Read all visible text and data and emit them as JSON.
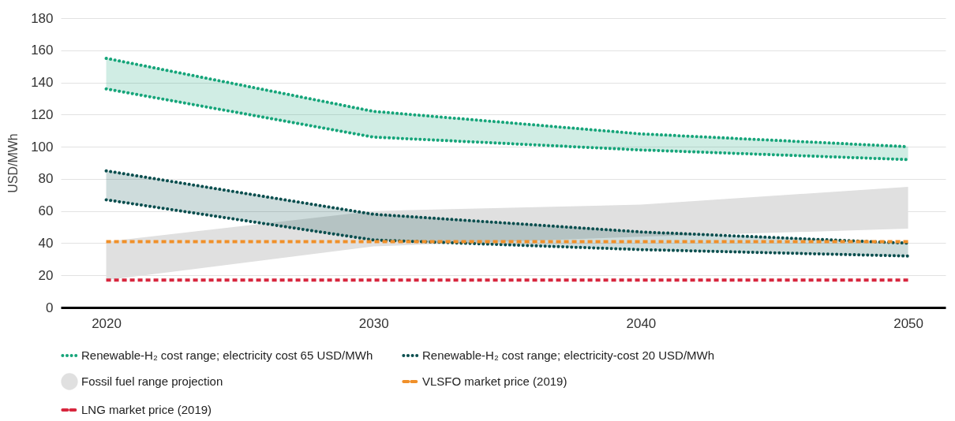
{
  "chart_data": {
    "type": "line",
    "ylabel": "USD/MWh",
    "x": [
      2020,
      2030,
      2040,
      2050
    ],
    "xlim": [
      2018.3,
      2051.4
    ],
    "xticks": [
      2020,
      2030,
      2040,
      2050
    ],
    "ylim": [
      0,
      180
    ],
    "yticks": [
      0,
      20,
      40,
      60,
      80,
      100,
      120,
      140,
      160,
      180
    ],
    "grid": "y",
    "legend": "bottom",
    "series": [
      {
        "name": "Renewable-H₂ cost range; electricity cost 65 USD/MWh",
        "line_style": "dotted",
        "color": "#16a57a",
        "values": [
          155,
          122,
          108,
          100
        ],
        "lower": [
          136,
          106,
          98,
          92
        ],
        "upper": [
          155,
          122,
          108,
          100
        ]
      },
      {
        "line_style": "dotted",
        "color": "#16a57a",
        "values": [
          136,
          106,
          98,
          92
        ]
      },
      {
        "name": "Renewable-H₂ cost range; electricity-cost 20 USD/MWh",
        "line_style": "dotted",
        "color": "#0b4f4f",
        "values": [
          85,
          58,
          47,
          40
        ],
        "lower": [
          67,
          42,
          36,
          32
        ],
        "upper": [
          85,
          58,
          47,
          40
        ]
      },
      {
        "line_style": "dotted",
        "color": "#0b4f4f",
        "values": [
          67,
          42,
          36,
          32
        ]
      },
      {
        "name": "Fossil fuel range projection",
        "color": "#e0e0e0",
        "values": [
          null,
          null,
          null,
          null
        ],
        "lower": [
          17,
          38,
          44,
          49
        ],
        "upper": [
          41,
          60,
          64,
          75
        ]
      },
      {
        "name": "VLSFO market price (2019)",
        "line_style": "dashed",
        "color": "#f0902a",
        "values": [
          41,
          41,
          41,
          41
        ]
      },
      {
        "name": "LNG market price (2019)",
        "line_style": "dashed",
        "color": "#d7263d",
        "values": [
          17,
          17,
          17,
          17
        ]
      }
    ]
  }
}
